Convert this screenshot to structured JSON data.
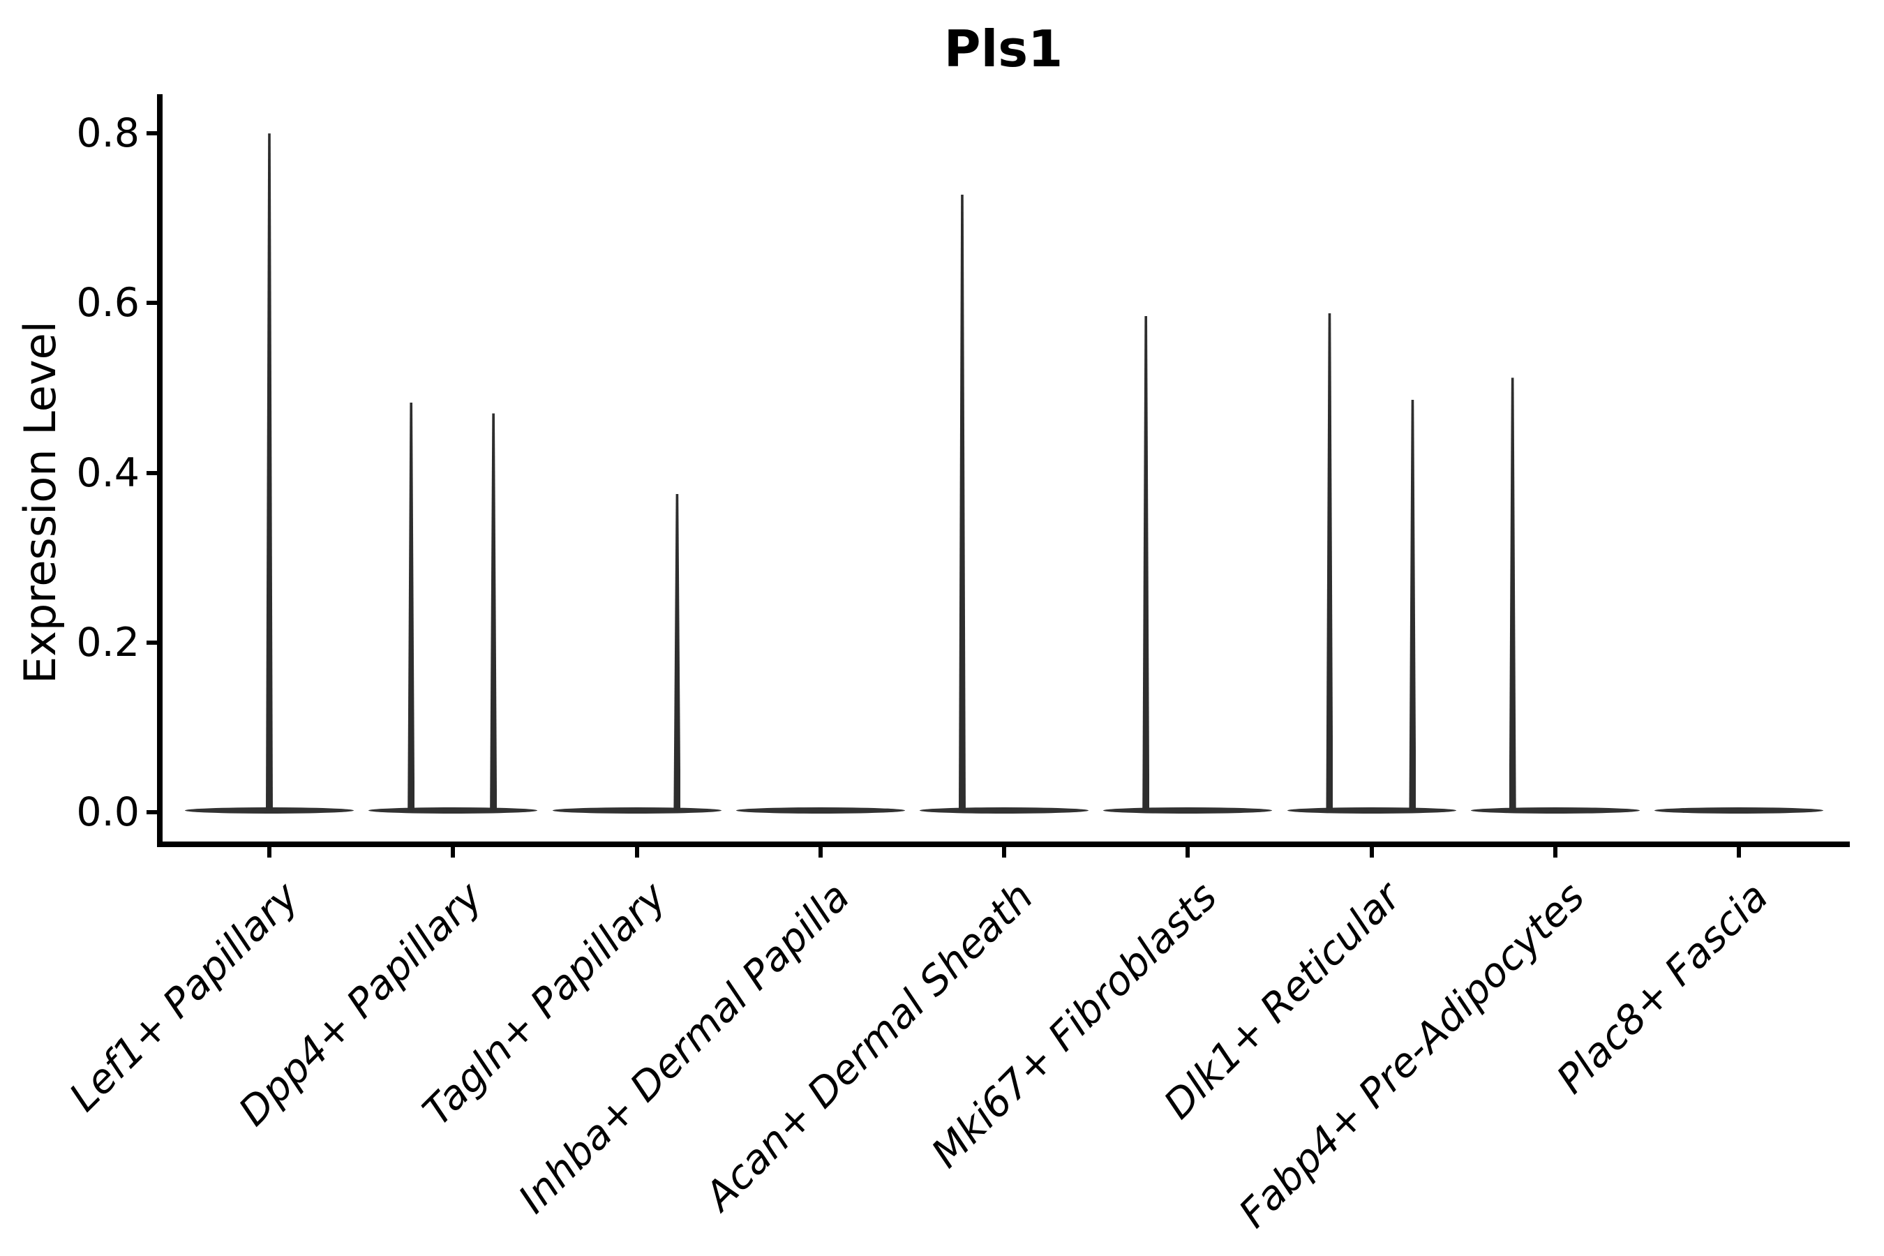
{
  "figure": {
    "title": "Pls1",
    "background_color": "#ffffff",
    "violin_color": "#323232",
    "axis_color": "#000000"
  },
  "chart_data": {
    "type": "violin",
    "title": "Pls1",
    "xlabel": "",
    "ylabel": "Expression Level",
    "yticks": [
      0.0,
      0.2,
      0.4,
      0.6,
      0.8
    ],
    "ytick_labels": [
      "0.0",
      "0.2",
      "0.4",
      "0.6",
      "0.8"
    ],
    "ylim": [
      -0.04,
      0.85
    ],
    "grid": false,
    "legend": null,
    "x_tick_label_rotation_deg": 45,
    "x_tick_label_style": "italic",
    "categories": [
      "Lef1+ Papillary",
      "Dpp4+ Papillary",
      "Tagln+ Papillary",
      "Inhba+ Dermal Papilla",
      "Acan+ Dermal Sheath",
      "Mki67+ Fibroblasts",
      "Dlk1+ Reticular",
      "Fabp4+ Pre-Adipocytes",
      "Plac8+ Fascia"
    ],
    "description": "Each category shows a violin collapsed to a flat lens at expression 0 (most cells non-expressing); thin vertical tails rise to the maximum expression value. dx is the tail offset from the category center in category-width units.",
    "violins": [
      {
        "category": "Lef1+ Papillary",
        "body_value": 0.0,
        "tails": [
          {
            "dx": 0.0,
            "max_value": 0.8
          }
        ]
      },
      {
        "category": "Dpp4+ Papillary",
        "body_value": 0.0,
        "tails": [
          {
            "dx": -0.228,
            "max_value": 0.483
          },
          {
            "dx": 0.22,
            "max_value": 0.47
          }
        ]
      },
      {
        "category": "Tagln+ Papillary",
        "body_value": 0.0,
        "tails": [
          {
            "dx": 0.22,
            "max_value": 0.375
          }
        ]
      },
      {
        "category": "Inhba+ Dermal Papilla",
        "body_value": 0.0,
        "tails": []
      },
      {
        "category": "Acan+ Dermal Sheath",
        "body_value": 0.0,
        "tails": [
          {
            "dx": -0.228,
            "max_value": 0.728
          }
        ]
      },
      {
        "category": "Mki67+ Fibroblasts",
        "body_value": 0.0,
        "tails": [
          {
            "dx": -0.228,
            "max_value": 0.585
          }
        ]
      },
      {
        "category": "Dlk1+ Reticular",
        "body_value": 0.0,
        "tails": [
          {
            "dx": -0.228,
            "max_value": 0.588
          },
          {
            "dx": 0.224,
            "max_value": 0.486
          }
        ]
      },
      {
        "category": "Fabp4+ Pre-Adipocytes",
        "body_value": 0.0,
        "tails": [
          {
            "dx": -0.232,
            "max_value": 0.512
          }
        ]
      },
      {
        "category": "Plac8+ Fascia",
        "body_value": 0.0,
        "tails": []
      }
    ]
  }
}
